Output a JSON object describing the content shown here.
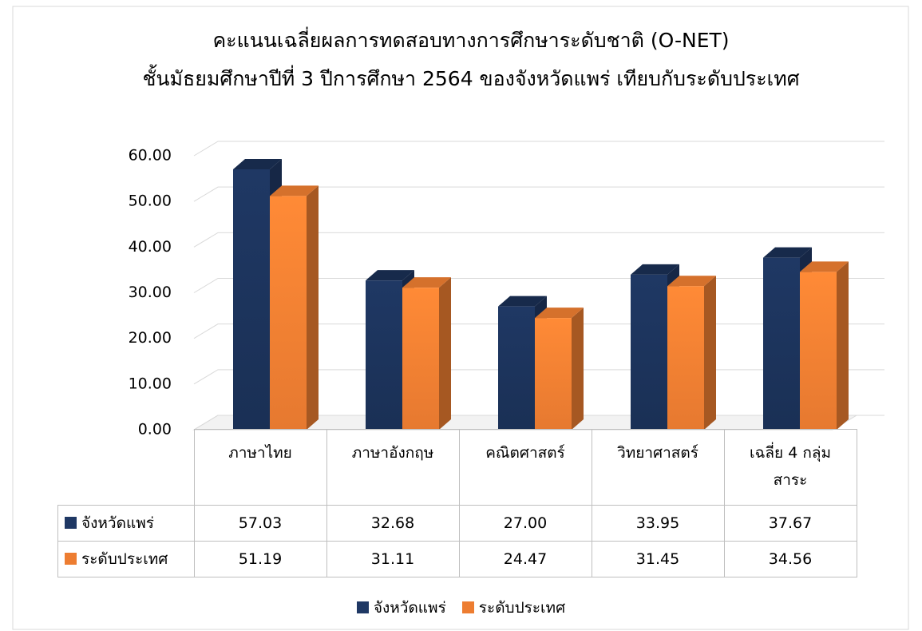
{
  "chart_data": {
    "type": "bar",
    "title": "คะแนนเฉลี่ยผลการทดสอบทางการศึกษาระดับชาติ  (O-NET)",
    "subtitle": "ชั้นมัธยมศึกษาปีที่ 3 ปีการศึกษา 2564  ของจังหวัดแพร่ เทียบกับระดับประเทศ",
    "categories": [
      "ภาษาไทย",
      "ภาษาอังกฤษ",
      "คณิตศาสตร์",
      "วิทยาศาสตร์",
      "เฉลี่ย 4 กลุ่มสาระ"
    ],
    "series": [
      {
        "name": "จังหวัดแพร่",
        "color": "#1f3864",
        "values": [
          57.03,
          32.68,
          27.0,
          33.95,
          37.67
        ],
        "value_labels": [
          "57.03",
          "32.68",
          "27.00",
          "33.95",
          "37.67"
        ]
      },
      {
        "name": "ระดับประเทศ",
        "color": "#ed7d31",
        "values": [
          51.19,
          31.11,
          24.47,
          31.45,
          34.56
        ],
        "value_labels": [
          "51.19",
          "31.11",
          "24.47",
          "31.45",
          "34.56"
        ]
      }
    ],
    "ylim": [
      0,
      60
    ],
    "yticks": [
      {
        "value": 0,
        "label": "0.00"
      },
      {
        "value": 10,
        "label": "10.00"
      },
      {
        "value": 20,
        "label": "20.00"
      },
      {
        "value": 30,
        "label": "30.00"
      },
      {
        "value": 40,
        "label": "40.00"
      },
      {
        "value": 50,
        "label": "50.00"
      },
      {
        "value": 60,
        "label": "60.00"
      }
    ],
    "grid": true,
    "legend": "bottom"
  }
}
